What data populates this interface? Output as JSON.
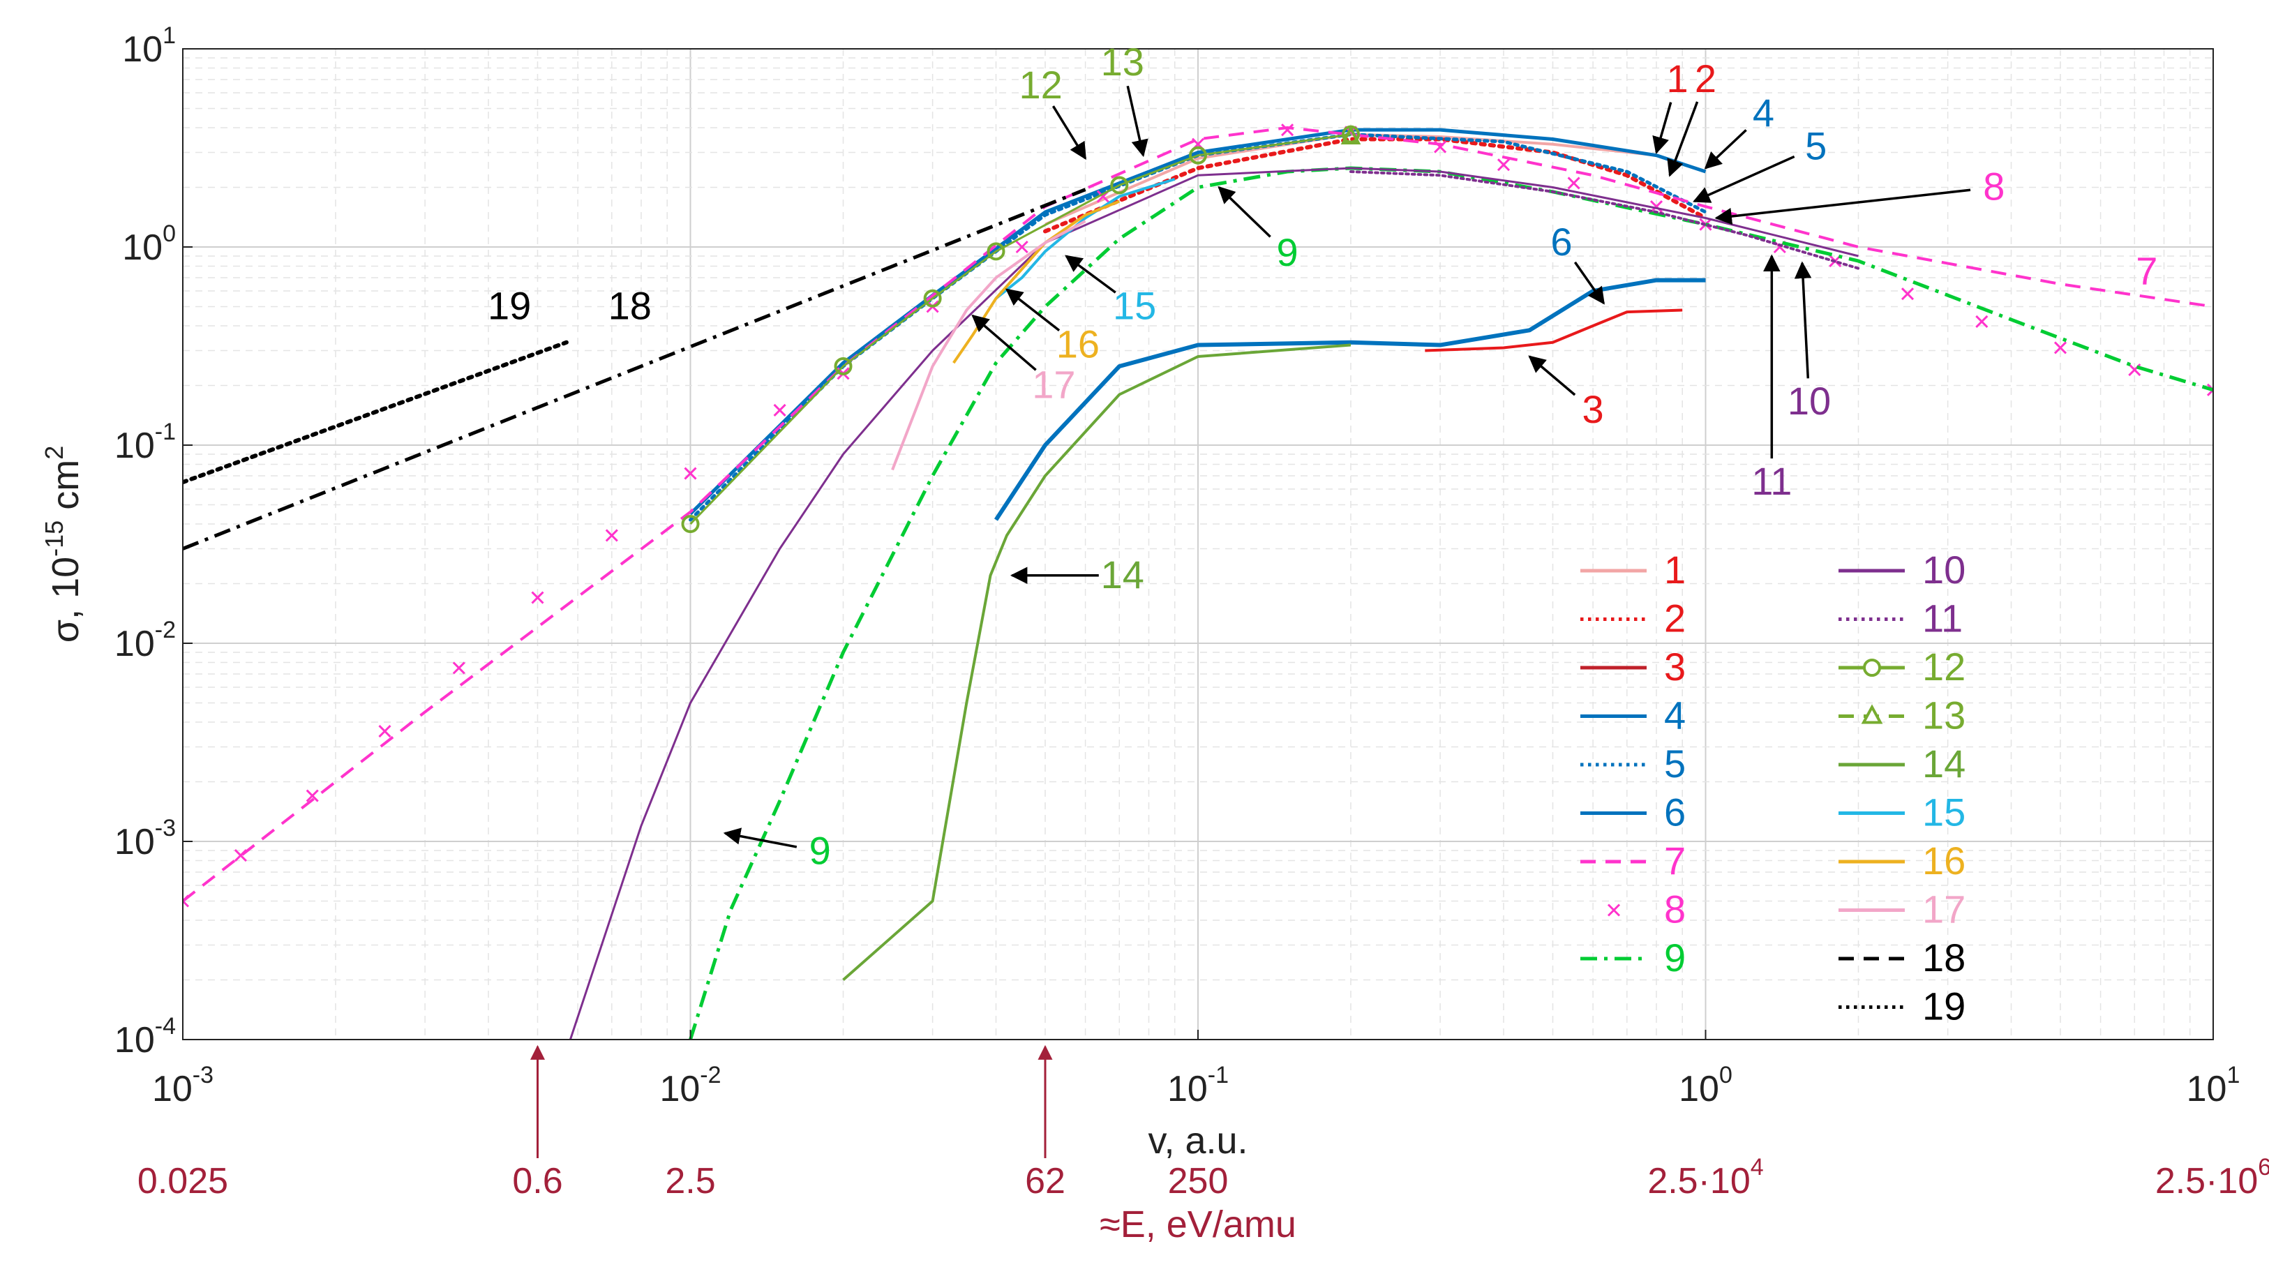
{
  "chart_data": {
    "type": "line",
    "xscale": "log",
    "yscale": "log",
    "xlim": [
      0.001,
      10
    ],
    "ylim": [
      0.0001,
      10
    ],
    "xlabel": "v, a.u.",
    "ylabel_main": "σ, 10",
    "ylabel_exp": "-15",
    "ylabel_unit": " cm",
    "ylabel_unit_exp": "2",
    "x_ticks": [
      {
        "value": 0.001,
        "base": "10",
        "exp": "-3"
      },
      {
        "value": 0.01,
        "base": "10",
        "exp": "-2"
      },
      {
        "value": 0.1,
        "base": "10",
        "exp": "-1"
      },
      {
        "value": 1,
        "base": "10",
        "exp": "0"
      },
      {
        "value": 10,
        "base": "10",
        "exp": "1"
      }
    ],
    "y_ticks": [
      {
        "value": 0.0001,
        "base": "10",
        "exp": "-4"
      },
      {
        "value": 0.001,
        "base": "10",
        "exp": "-3"
      },
      {
        "value": 0.01,
        "base": "10",
        "exp": "-2"
      },
      {
        "value": 0.1,
        "base": "10",
        "exp": "-1"
      },
      {
        "value": 1,
        "base": "10",
        "exp": "0"
      },
      {
        "value": 10,
        "base": "10",
        "exp": "1"
      }
    ],
    "energy_axis": {
      "label": "≈E, eV/amu",
      "color": "#a3203a",
      "ticks": [
        {
          "v": 0.001,
          "base": "0.025",
          "exp": ""
        },
        {
          "v": 0.005,
          "base": "0.6",
          "exp": "",
          "arrow": true
        },
        {
          "v": 0.01,
          "base": "2.5",
          "exp": ""
        },
        {
          "v": 0.05,
          "base": "62",
          "exp": "",
          "arrow": true
        },
        {
          "v": 0.1,
          "base": "250",
          "exp": ""
        },
        {
          "v": 1,
          "base": "2.5·10",
          "exp": "4"
        },
        {
          "v": 10,
          "base": "2.5·10",
          "exp": "6"
        }
      ]
    },
    "series": [
      {
        "name": "1",
        "color": "#f2a6a6",
        "dash": "solid",
        "width": 4,
        "marker": "none",
        "x": [
          0.05,
          0.1,
          0.2,
          0.3,
          0.5,
          0.8
        ],
        "y": [
          1.3,
          2.8,
          3.7,
          3.6,
          3.3,
          2.9
        ]
      },
      {
        "name": "2",
        "color": "#e8191b",
        "dash": "dot",
        "width": 6,
        "marker": "none",
        "x": [
          0.05,
          0.1,
          0.2,
          0.3,
          0.5,
          0.7,
          1.0
        ],
        "y": [
          1.2,
          2.5,
          3.5,
          3.5,
          3.0,
          2.3,
          1.4
        ]
      },
      {
        "name": "3",
        "color": "#e8191b",
        "dash": "solid",
        "width": 4,
        "marker": "none",
        "x": [
          0.28,
          0.4,
          0.5,
          0.6,
          0.7,
          0.9
        ],
        "y": [
          0.3,
          0.31,
          0.33,
          0.4,
          0.47,
          0.48
        ]
      },
      {
        "name": "4",
        "color": "#0072bd",
        "dash": "solid",
        "width": 5,
        "marker": "none",
        "x": [
          0.01,
          0.02,
          0.03,
          0.05,
          0.1,
          0.2,
          0.3,
          0.5,
          0.8,
          1.0
        ],
        "y": [
          0.045,
          0.26,
          0.57,
          1.5,
          3.0,
          3.9,
          3.9,
          3.5,
          2.9,
          2.4
        ]
      },
      {
        "name": "5",
        "color": "#0072bd",
        "dash": "dot",
        "width": 5,
        "marker": "none",
        "x": [
          0.01,
          0.02,
          0.03,
          0.05,
          0.1,
          0.2,
          0.4,
          0.7,
          1.0
        ],
        "y": [
          0.042,
          0.25,
          0.55,
          1.45,
          2.9,
          3.7,
          3.4,
          2.4,
          1.5
        ]
      },
      {
        "name": "6",
        "color": "#0072bd",
        "dash": "solid",
        "width": 6,
        "marker": "none",
        "x": [
          0.04,
          0.05,
          0.07,
          0.1,
          0.2,
          0.3,
          0.45,
          0.6,
          0.8,
          1.0
        ],
        "y": [
          0.042,
          0.1,
          0.25,
          0.32,
          0.33,
          0.32,
          0.38,
          0.6,
          0.68,
          0.68
        ]
      },
      {
        "name": "7",
        "color": "#ff33cc",
        "dash": "dash",
        "width": 4,
        "marker": "none",
        "x": [
          0.001,
          0.003,
          0.01,
          0.02,
          0.05,
          0.1,
          0.15,
          0.3,
          0.6,
          1.0,
          2.0,
          5.0,
          10.0
        ],
        "y": [
          0.0005,
          0.0045,
          0.046,
          0.25,
          1.6,
          3.5,
          4.0,
          3.3,
          2.3,
          1.6,
          1.0,
          0.65,
          0.5
        ]
      },
      {
        "name": "8",
        "color": "#ff33cc",
        "dash": "none",
        "width": 0,
        "marker": "x",
        "x": [
          0.001,
          0.0013,
          0.0018,
          0.0025,
          0.0035,
          0.005,
          0.007,
          0.01,
          0.015,
          0.02,
          0.03,
          0.045,
          0.065,
          0.1,
          0.15,
          0.2,
          0.3,
          0.4,
          0.55,
          0.8,
          1.0,
          1.4,
          1.8,
          2.5,
          3.5,
          5.0,
          7.0,
          10.0
        ],
        "y": [
          0.0005,
          0.00085,
          0.0017,
          0.0036,
          0.0075,
          0.017,
          0.035,
          0.072,
          0.15,
          0.23,
          0.5,
          1.0,
          1.8,
          3.3,
          3.9,
          3.8,
          3.2,
          2.6,
          2.1,
          1.6,
          1.3,
          1.0,
          0.85,
          0.58,
          0.42,
          0.31,
          0.24,
          0.19
        ]
      },
      {
        "name": "9",
        "color": "#00cc33",
        "dash": "dashdot",
        "width": 5,
        "marker": "none",
        "x": [
          0.01,
          0.012,
          0.015,
          0.02,
          0.03,
          0.04,
          0.05,
          0.07,
          0.1,
          0.15,
          0.2,
          0.3,
          0.5,
          1.0,
          2.0,
          4.0,
          7.0,
          10.0
        ],
        "y": [
          0.0001,
          0.00045,
          0.0016,
          0.009,
          0.07,
          0.26,
          0.5,
          1.1,
          2.0,
          2.4,
          2.5,
          2.4,
          1.9,
          1.3,
          0.85,
          0.43,
          0.25,
          0.19
        ]
      },
      {
        "name": "10",
        "color": "#7e2f8e",
        "dash": "solid",
        "width": 3,
        "marker": "none",
        "x": [
          0.0058,
          0.008,
          0.01,
          0.015,
          0.02,
          0.03,
          0.05,
          0.1,
          0.2,
          0.3,
          0.5,
          1.0,
          2.0
        ],
        "y": [
          0.0001,
          0.0012,
          0.005,
          0.03,
          0.09,
          0.3,
          1.05,
          2.3,
          2.5,
          2.4,
          2.0,
          1.4,
          0.9
        ]
      },
      {
        "name": "11",
        "color": "#7e2f8e",
        "dash": "dot",
        "width": 4,
        "marker": "none",
        "x": [
          0.2,
          0.3,
          0.5,
          0.8,
          1.2,
          2.0
        ],
        "y": [
          2.4,
          2.3,
          1.9,
          1.5,
          1.15,
          0.78
        ]
      },
      {
        "name": "12",
        "color": "#77ac30",
        "dash": "solid",
        "width": 3,
        "marker": "o",
        "x": [
          0.01,
          0.02,
          0.03,
          0.04,
          0.07,
          0.1,
          0.2
        ],
        "y": [
          0.04,
          0.25,
          0.55,
          0.95,
          2.05,
          2.9,
          3.7
        ]
      },
      {
        "name": "13",
        "color": "#77ac30",
        "dash": "dash",
        "width": 3,
        "marker": "triangle",
        "x": [
          0.2
        ],
        "y": [
          3.6
        ]
      },
      {
        "name": "14",
        "color": "#6aa637",
        "dash": "solid",
        "width": 4,
        "marker": "none",
        "x": [
          0.02,
          0.03,
          0.035,
          0.039,
          0.042,
          0.05,
          0.07,
          0.1,
          0.2
        ],
        "y": [
          0.0002,
          0.0005,
          0.005,
          0.022,
          0.035,
          0.07,
          0.18,
          0.28,
          0.32
        ]
      },
      {
        "name": "15",
        "color": "#23b7e5",
        "dash": "solid",
        "width": 4,
        "marker": "none",
        "x": [
          0.04,
          0.045,
          0.05,
          0.06,
          0.07,
          0.09
        ],
        "y": [
          0.55,
          0.7,
          0.95,
          1.4,
          1.8,
          2.2
        ]
      },
      {
        "name": "16",
        "color": "#edb120",
        "dash": "solid",
        "width": 4,
        "marker": "none",
        "x": [
          0.033,
          0.036,
          0.04,
          0.05,
          0.06,
          0.07
        ],
        "y": [
          0.26,
          0.36,
          0.55,
          1.05,
          1.45,
          1.7
        ]
      },
      {
        "name": "17",
        "color": "#f2a6c8",
        "dash": "solid",
        "width": 4,
        "marker": "none",
        "x": [
          0.025,
          0.03,
          0.035,
          0.04,
          0.05,
          0.06
        ],
        "y": [
          0.075,
          0.25,
          0.48,
          0.7,
          1.05,
          1.35
        ]
      },
      {
        "name": "18",
        "color": "#000000",
        "dash": "dashdot",
        "width": 5,
        "marker": "none",
        "x": [
          0.001,
          0.06
        ],
        "y": [
          0.03,
          1.95
        ]
      },
      {
        "name": "19",
        "color": "#000000",
        "dash": "dot",
        "width": 6,
        "marker": "none",
        "x": [
          0.001,
          0.0057
        ],
        "y": [
          0.065,
          0.33
        ]
      }
    ],
    "annotations": [
      {
        "text": "1",
        "color": "#e8191b",
        "lx": 0.88,
        "ly": 7.0,
        "ax": 0.8,
        "ay": 3.0
      },
      {
        "text": "2",
        "color": "#e8191b",
        "lx": 1.0,
        "ly": 7.0,
        "ax": 0.85,
        "ay": 2.3
      },
      {
        "text": "4",
        "color": "#0072bd",
        "lx": 1.3,
        "ly": 4.7,
        "ax": 1.0,
        "ay": 2.5
      },
      {
        "text": "5",
        "color": "#0072bd",
        "lx": 1.65,
        "ly": 3.2,
        "ax": 0.95,
        "ay": 1.7
      },
      {
        "text": "8",
        "color": "#ff33cc",
        "lx": 3.7,
        "ly": 2.0,
        "ax": 1.05,
        "ay": 1.4
      },
      {
        "text": "7",
        "color": "#ff33cc",
        "lx": 7.4,
        "ly": 0.75,
        "ax": null,
        "ay": null
      },
      {
        "text": "6",
        "color": "#0072bd",
        "lx": 0.52,
        "ly": 1.05,
        "ax": 0.63,
        "ay": 0.52
      },
      {
        "text": "3",
        "color": "#e8191b",
        "lx": 0.6,
        "ly": 0.15,
        "ax": 0.45,
        "ay": 0.28
      },
      {
        "text": "10",
        "color": "#7e2f8e",
        "lx": 1.6,
        "ly": 0.165,
        "ax": 1.55,
        "ay": 0.83
      },
      {
        "text": "11",
        "color": "#7e2f8e",
        "lx": 1.35,
        "ly": 0.065,
        "ax": 1.35,
        "ay": 0.9
      },
      {
        "text": "12",
        "color": "#77ac30",
        "lx": 0.049,
        "ly": 6.5,
        "ax": 0.06,
        "ay": 2.8
      },
      {
        "text": "13",
        "color": "#77ac30",
        "lx": 0.071,
        "ly": 8.5,
        "ax": 0.078,
        "ay": 2.9
      },
      {
        "text": "9",
        "color": "#00cc33",
        "lx": 0.15,
        "ly": 0.93,
        "ax": 0.11,
        "ay": 2.0
      },
      {
        "text": "15",
        "color": "#23b7e5",
        "lx": 0.075,
        "ly": 0.5,
        "ax": 0.055,
        "ay": 0.9
      },
      {
        "text": "16",
        "color": "#edb120",
        "lx": 0.058,
        "ly": 0.32,
        "ax": 0.042,
        "ay": 0.61
      },
      {
        "text": "17",
        "color": "#f2a6c8",
        "lx": 0.052,
        "ly": 0.2,
        "ax": 0.036,
        "ay": 0.45
      },
      {
        "text": "14",
        "color": "#6aa637",
        "lx": 0.071,
        "ly": 0.022,
        "ax": 0.043,
        "ay": 0.022
      },
      {
        "text": "9",
        "color": "#00cc33",
        "lx": 0.018,
        "ly": 0.00089,
        "ax": 0.0117,
        "ay": 0.0011
      },
      {
        "text": "18",
        "color": "#000000",
        "lx": 0.0076,
        "ly": 0.5,
        "ax": null,
        "ay": null
      },
      {
        "text": "19",
        "color": "#000000",
        "lx": 0.0044,
        "ly": 0.5,
        "ax": null,
        "ay": null
      }
    ],
    "legend": {
      "placement": "bottom-right",
      "entries": [
        {
          "label": "1",
          "color": "#f2a6a6",
          "label_color": "#e8191b",
          "dash": "solid",
          "marker": "none"
        },
        {
          "label": "2",
          "color": "#e8191b",
          "label_color": "#e8191b",
          "dash": "dot",
          "marker": "none"
        },
        {
          "label": "3",
          "color": "#c0202a",
          "label_color": "#e8191b",
          "dash": "solid",
          "marker": "none"
        },
        {
          "label": "4",
          "color": "#0072bd",
          "label_color": "#0072bd",
          "dash": "solid",
          "marker": "none"
        },
        {
          "label": "5",
          "color": "#0072bd",
          "label_color": "#0072bd",
          "dash": "dot",
          "marker": "none"
        },
        {
          "label": "6",
          "color": "#0072bd",
          "label_color": "#0072bd",
          "dash": "solid",
          "marker": "none"
        },
        {
          "label": "7",
          "color": "#ff33cc",
          "label_color": "#ff33cc",
          "dash": "dash",
          "marker": "none"
        },
        {
          "label": "8",
          "color": "#ff33cc",
          "label_color": "#ff33cc",
          "dash": "none",
          "marker": "x"
        },
        {
          "label": "9",
          "color": "#00cc33",
          "label_color": "#00cc33",
          "dash": "dashdot",
          "marker": "none"
        },
        {
          "label": "10",
          "color": "#7e2f8e",
          "label_color": "#7e2f8e",
          "dash": "solid",
          "marker": "none"
        },
        {
          "label": "11",
          "color": "#7e2f8e",
          "label_color": "#7e2f8e",
          "dash": "dot",
          "marker": "none"
        },
        {
          "label": "12",
          "color": "#77ac30",
          "label_color": "#77ac30",
          "dash": "solid",
          "marker": "o"
        },
        {
          "label": "13",
          "color": "#77ac30",
          "label_color": "#77ac30",
          "dash": "dash",
          "marker": "triangle"
        },
        {
          "label": "14",
          "color": "#6aa637",
          "label_color": "#6aa637",
          "dash": "solid",
          "marker": "none"
        },
        {
          "label": "15",
          "color": "#23b7e5",
          "label_color": "#23b7e5",
          "dash": "solid",
          "marker": "none"
        },
        {
          "label": "16",
          "color": "#edb120",
          "label_color": "#edb120",
          "dash": "solid",
          "marker": "none"
        },
        {
          "label": "17",
          "color": "#f2a6c8",
          "label_color": "#f2a6c8",
          "dash": "solid",
          "marker": "none"
        },
        {
          "label": "18",
          "color": "#000000",
          "label_color": "#000000",
          "dash": "dash",
          "marker": "none"
        },
        {
          "label": "19",
          "color": "#000000",
          "label_color": "#000000",
          "dash": "dot",
          "marker": "none"
        }
      ]
    }
  }
}
